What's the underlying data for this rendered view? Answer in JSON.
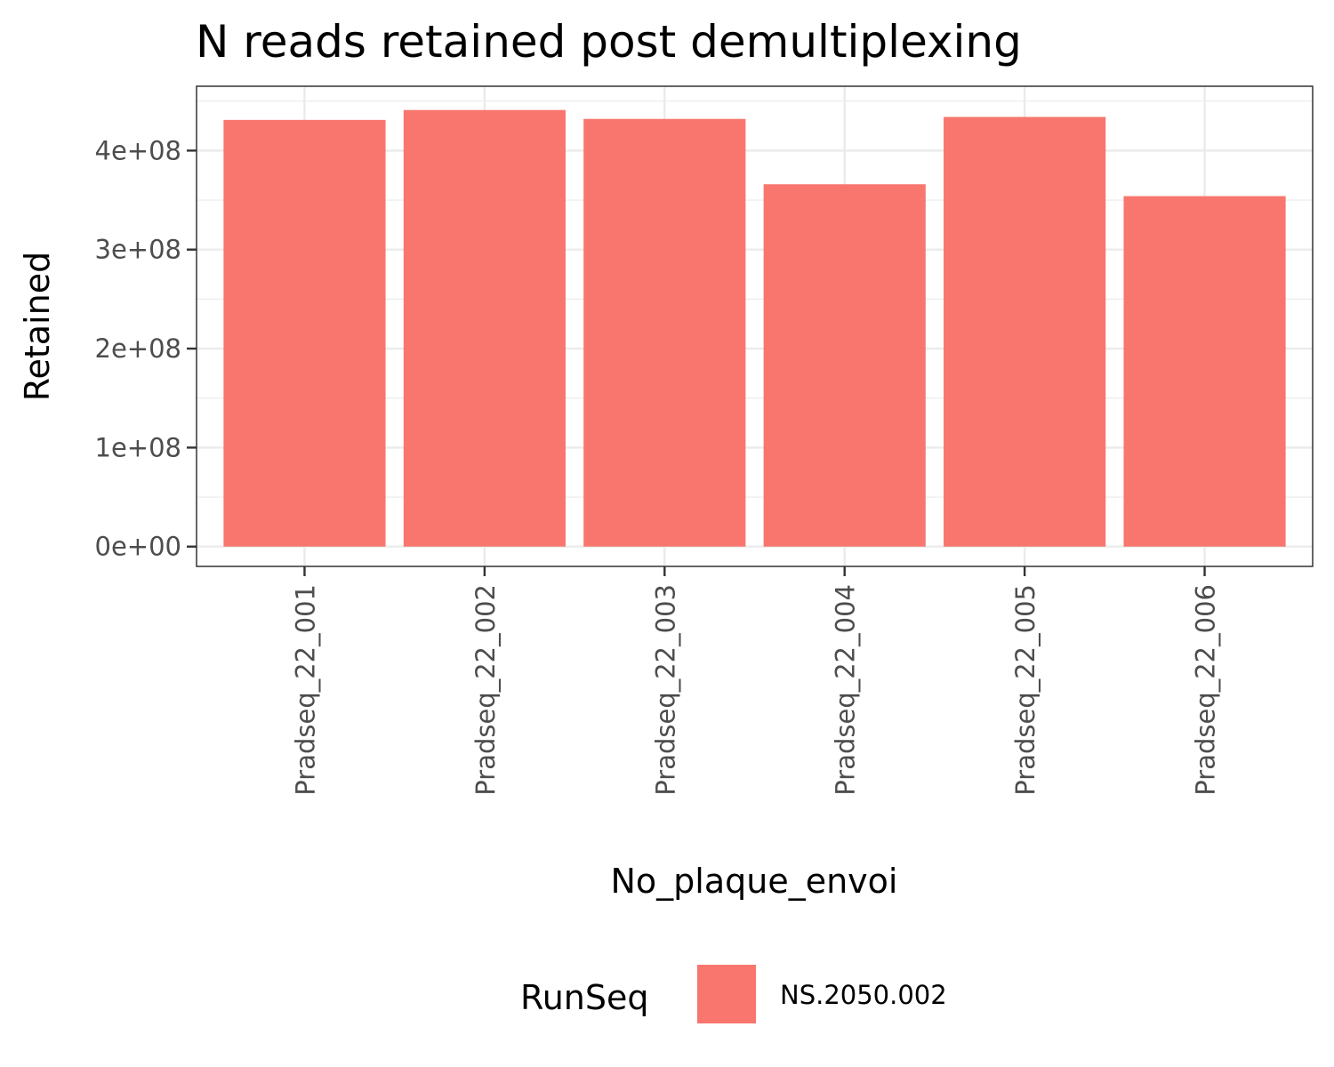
{
  "chart_data": {
    "type": "bar",
    "title": "N reads retained post demultiplexing",
    "xlabel": "No_plaque_envoi",
    "ylabel": "Retained",
    "categories": [
      "Pradseq_22_001",
      "Pradseq_22_002",
      "Pradseq_22_003",
      "Pradseq_22_004",
      "Pradseq_22_005",
      "Pradseq_22_006"
    ],
    "series": [
      {
        "name": "NS.2050.002",
        "values": [
          431000000,
          441000000,
          432000000,
          366000000,
          434000000,
          354000000
        ]
      }
    ],
    "ylim": [
      -20000000,
      465000000
    ],
    "yticks": [
      0,
      100000000,
      200000000,
      300000000,
      400000000
    ],
    "ytick_labels": [
      "0e+00",
      "1e+08",
      "2e+08",
      "3e+08",
      "4e+08"
    ],
    "grid": true,
    "legend": {
      "title": "RunSeq",
      "position": "bottom"
    },
    "colors": {
      "bar": "#f8766d",
      "grid": "#ebebeb",
      "panel_border": "#333333"
    }
  }
}
